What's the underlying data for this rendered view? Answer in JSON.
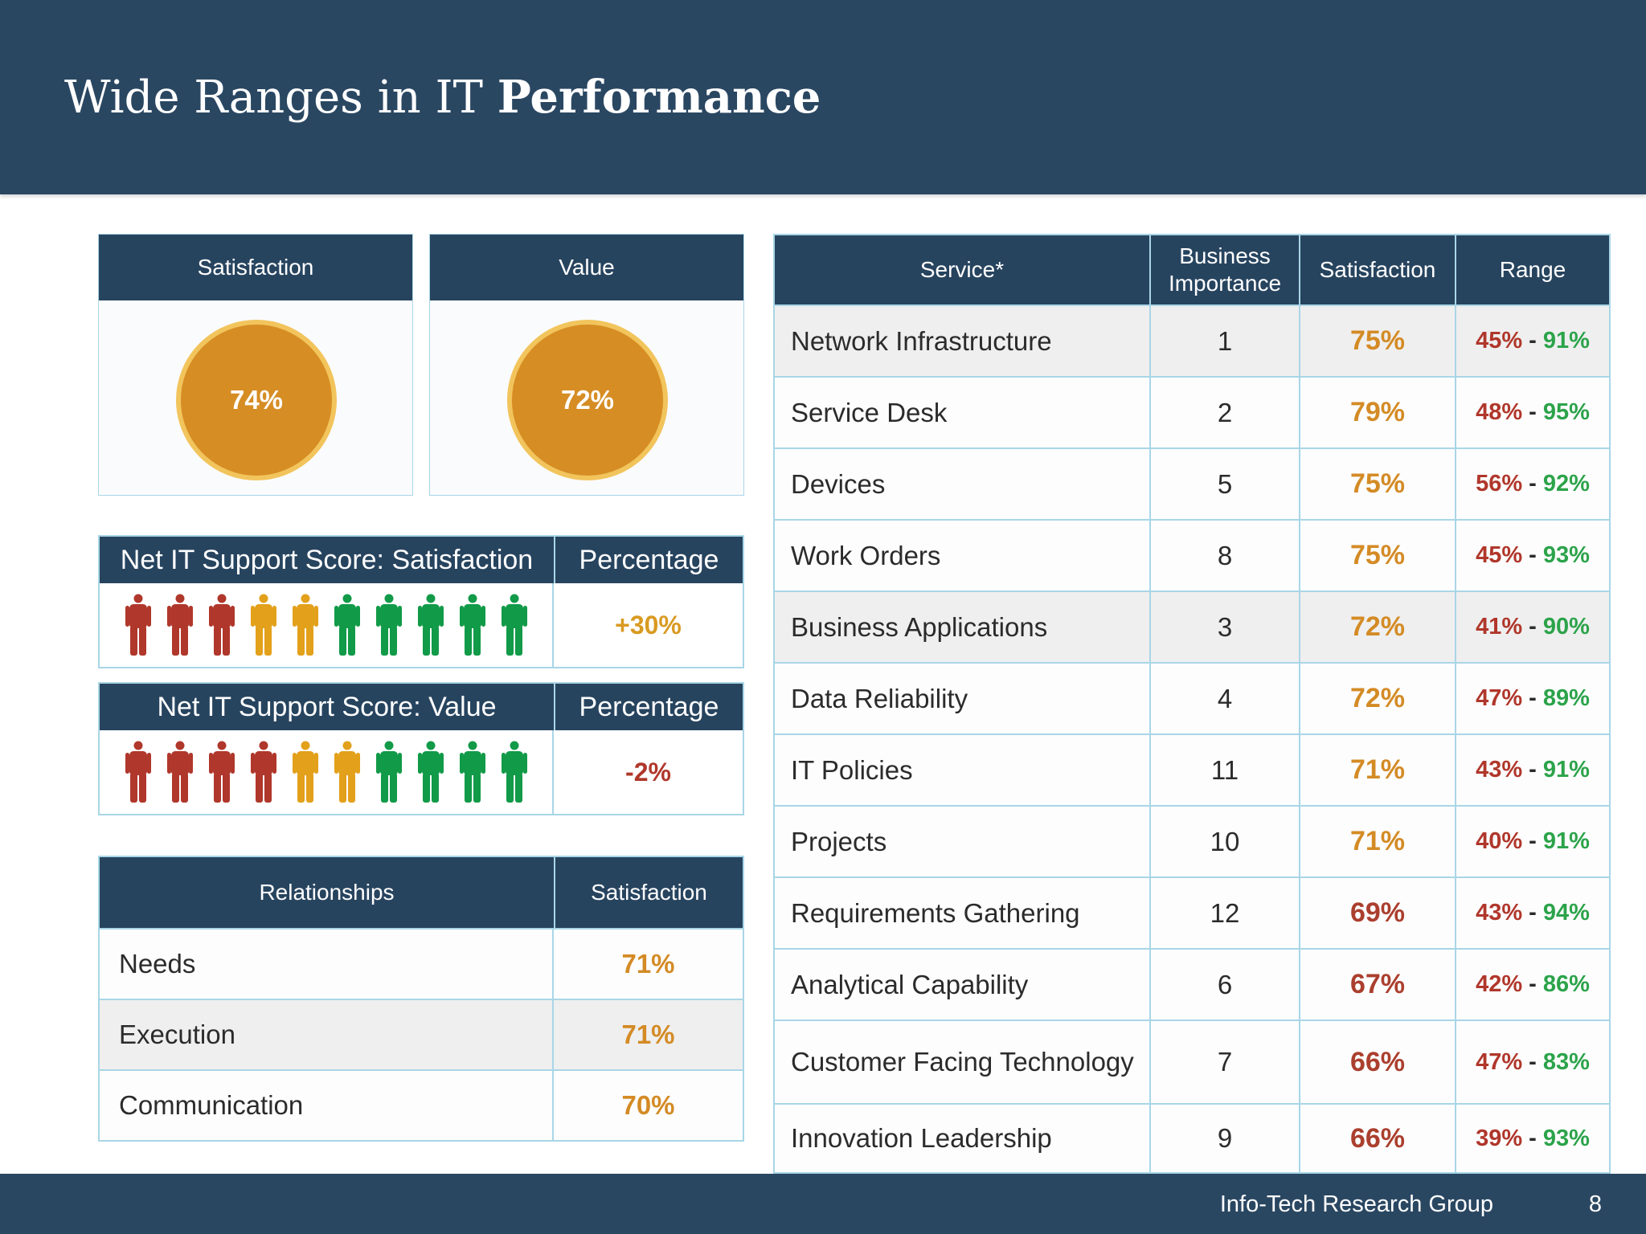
{
  "header": {
    "title_regular": "Wide Ranges in IT ",
    "title_bold": "Performance"
  },
  "kpis": [
    {
      "label": "Satisfaction",
      "value": "74%"
    },
    {
      "label": "Value",
      "value": "72%"
    }
  ],
  "nps": [
    {
      "title": "Net IT Support Score: Satisfaction",
      "col2": "Percentage",
      "value": "+30%",
      "value_color": "#d99a21",
      "people": [
        "red",
        "red",
        "red",
        "yellow",
        "yellow",
        "green",
        "green",
        "green",
        "green",
        "green"
      ]
    },
    {
      "title": "Net IT Support Score: Value",
      "col2": "Percentage",
      "value": "-2%",
      "value_color": "#b0372b",
      "people": [
        "red",
        "red",
        "red",
        "red",
        "yellow",
        "yellow",
        "green",
        "green",
        "green",
        "green"
      ]
    }
  ],
  "colors": {
    "red": "#b0372b",
    "yellow": "#e3a01a",
    "green": "#119a48",
    "header_bg": "#2a4762",
    "orange": "#d48b25"
  },
  "relationships": {
    "headers": [
      "Relationships",
      "Satisfaction"
    ],
    "rows": [
      {
        "name": "Needs",
        "value": "71%"
      },
      {
        "name": "Execution",
        "value": "71%"
      },
      {
        "name": "Communication",
        "value": "70%"
      }
    ]
  },
  "services": {
    "headers": [
      "Service*",
      "Business Importance",
      "Satisfaction",
      "Range"
    ],
    "rows": [
      {
        "name": "Network Infrastructure",
        "importance": "1",
        "satisfaction": "75%",
        "low": "45%",
        "high": "91%",
        "sat_color": "#d48b25"
      },
      {
        "name": "Service Desk",
        "importance": "2",
        "satisfaction": "79%",
        "low": "48%",
        "high": "95%",
        "sat_color": "#d48b25"
      },
      {
        "name": "Devices",
        "importance": "5",
        "satisfaction": "75%",
        "low": "56%",
        "high": "92%",
        "sat_color": "#d48b25"
      },
      {
        "name": "Work Orders",
        "importance": "8",
        "satisfaction": "75%",
        "low": "45%",
        "high": "93%",
        "sat_color": "#d48b25"
      },
      {
        "name": "Business Applications",
        "importance": "3",
        "satisfaction": "72%",
        "low": "41%",
        "high": "90%",
        "sat_color": "#d48b25"
      },
      {
        "name": "Data Reliability",
        "importance": "4",
        "satisfaction": "72%",
        "low": "47%",
        "high": "89%",
        "sat_color": "#d48b25"
      },
      {
        "name": "IT Policies",
        "importance": "11",
        "satisfaction": "71%",
        "low": "43%",
        "high": "91%",
        "sat_color": "#d48b25"
      },
      {
        "name": "Projects",
        "importance": "10",
        "satisfaction": "71%",
        "low": "40%",
        "high": "91%",
        "sat_color": "#d48b25"
      },
      {
        "name": "Requirements Gathering",
        "importance": "12",
        "satisfaction": "69%",
        "low": "43%",
        "high": "94%",
        "sat_color": "#ab3f2e"
      },
      {
        "name": "Analytical Capability",
        "importance": "6",
        "satisfaction": "67%",
        "low": "42%",
        "high": "86%",
        "sat_color": "#ab3f2e"
      },
      {
        "name": "Customer Facing Technology",
        "importance": "7",
        "satisfaction": "66%",
        "low": "47%",
        "high": "83%",
        "sat_color": "#ab3f2e"
      },
      {
        "name": "Innovation Leadership",
        "importance": "9",
        "satisfaction": "66%",
        "low": "39%",
        "high": "93%",
        "sat_color": "#ab3f2e"
      }
    ]
  },
  "footer": {
    "org": "Info-Tech Research Group",
    "page": "8"
  }
}
